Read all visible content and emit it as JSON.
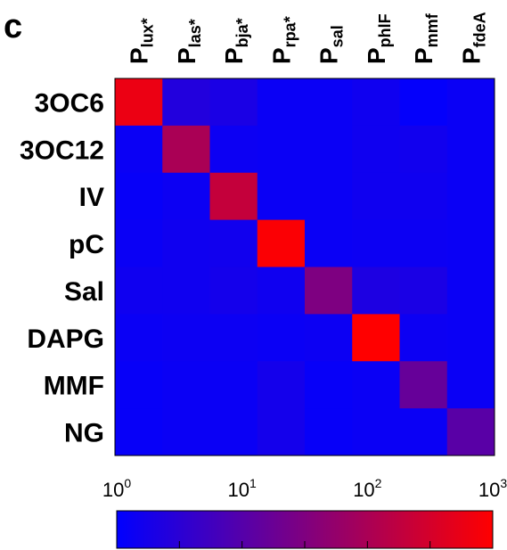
{
  "panel_label": "c",
  "chart_data": {
    "type": "heatmap",
    "row_labels": [
      "3OC6",
      "3OC12",
      "IV",
      "pC",
      "Sal",
      "DAPG",
      "MMF",
      "NG"
    ],
    "column_labels": [
      {
        "main": "P",
        "sub": "lux*"
      },
      {
        "main": "P",
        "sub": "las*"
      },
      {
        "main": "P",
        "sub": "bja*"
      },
      {
        "main": "P",
        "sub": "rpa*"
      },
      {
        "main": "P",
        "sub": "sal"
      },
      {
        "main": "P",
        "sub": "phlF"
      },
      {
        "main": "P",
        "sub": "mmf"
      },
      {
        "main": "P",
        "sub": "fdeA"
      }
    ],
    "values": [
      [
        600,
        2.5,
        2.0,
        1.3,
        1.3,
        1.5,
        1.1,
        1.3
      ],
      [
        1.3,
        100,
        1.4,
        1.3,
        1.3,
        1.5,
        1.6,
        1.3
      ],
      [
        1.2,
        1.4,
        200,
        1.3,
        1.3,
        1.5,
        1.5,
        1.3
      ],
      [
        1.3,
        1.5,
        1.6,
        900,
        1.3,
        1.4,
        1.4,
        1.3
      ],
      [
        1.5,
        1.5,
        1.7,
        1.5,
        30,
        2.2,
        2.0,
        1.3
      ],
      [
        1.3,
        1.4,
        1.4,
        1.3,
        1.4,
        1000,
        1.4,
        1.3
      ],
      [
        1.2,
        1.3,
        1.3,
        1.7,
        1.2,
        1.3,
        16,
        1.3
      ],
      [
        1.2,
        1.3,
        1.3,
        1.7,
        1.2,
        1.3,
        1.3,
        11
      ]
    ],
    "scale": "log",
    "value_range": [
      1,
      1000
    ],
    "colorbar": {
      "tick_labels": [
        {
          "base": "10",
          "exp": "0"
        },
        {
          "base": "10",
          "exp": "1"
        },
        {
          "base": "10",
          "exp": "2"
        },
        {
          "base": "10",
          "exp": "3"
        }
      ],
      "colormap": [
        "#0000ff",
        "#ff0000"
      ]
    }
  }
}
